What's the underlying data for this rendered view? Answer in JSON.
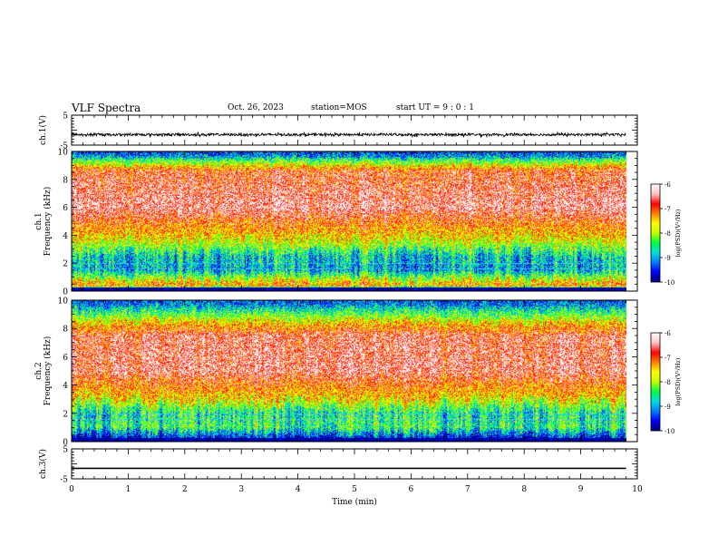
{
  "header": {
    "title": "VLF Spectra",
    "date": "Oct. 26, 2023",
    "station": "station=MOS",
    "start": "start UT =  9 : 0 : 1"
  },
  "colors": {
    "scale": [
      "#000080",
      "#0000ff",
      "#0080ff",
      "#00e0e0",
      "#00ff40",
      "#c0ff00",
      "#ffff00",
      "#ff8000",
      "#ff0000",
      "#ffc0c0",
      "#ffffff"
    ]
  },
  "chart_data": [
    {
      "type": "line",
      "id": "ch1-waveform",
      "ylabel": "ch.1(V)",
      "ylim": [
        -5,
        5
      ],
      "y_ticks": [
        "5",
        "-5"
      ],
      "xlim": [
        0,
        10
      ],
      "description_values": {
        "baseline_V": -1.5,
        "noise_amplitude_V": 0.4
      }
    },
    {
      "type": "heatmap",
      "id": "ch1-spectrogram",
      "ylabel": "ch.1\nFrequency (kHz)",
      "ylim": [
        0,
        10
      ],
      "y_ticks": [
        "0",
        "2",
        "4",
        "6",
        "8",
        "10"
      ],
      "xlim": [
        0,
        10
      ],
      "data_extent_min": 9.8,
      "colorbar": {
        "label": "log(PSD)(V²/Hz)",
        "range": [
          -10,
          -6
        ],
        "ticks": [
          "-6",
          "-7",
          "-8",
          "-9",
          "-10"
        ]
      },
      "frequency_profile_kHz": [
        {
          "f": 0.0,
          "log_psd": -10
        },
        {
          "f": 0.4,
          "log_psd": -7.2
        },
        {
          "f": 1.5,
          "log_psd": -9.0
        },
        {
          "f": 2.5,
          "log_psd": -8.8
        },
        {
          "f": 3.5,
          "log_psd": -7.8
        },
        {
          "f": 6.0,
          "log_psd": -6.4
        },
        {
          "f": 8.6,
          "log_psd": -6.8
        },
        {
          "f": 9.3,
          "log_psd": -8.2
        },
        {
          "f": 10.0,
          "log_psd": -9.6
        }
      ]
    },
    {
      "type": "heatmap",
      "id": "ch2-spectrogram",
      "ylabel": "ch.2\nFrequency (kHz)",
      "ylim": [
        0,
        10
      ],
      "y_ticks": [
        "0",
        "2",
        "4",
        "6",
        "8",
        "10"
      ],
      "xlim": [
        0,
        10
      ],
      "data_extent_min": 9.8,
      "colorbar": {
        "label": "log(PSD)(V²/Hz)",
        "range": [
          -10,
          -6
        ],
        "ticks": [
          "-6",
          "-7",
          "-8",
          "-9",
          "-10"
        ]
      },
      "frequency_profile_kHz": [
        {
          "f": 0.0,
          "log_psd": -10
        },
        {
          "f": 1.0,
          "log_psd": -8.4
        },
        {
          "f": 2.0,
          "log_psd": -8.6
        },
        {
          "f": 3.0,
          "log_psd": -7.6
        },
        {
          "f": 5.0,
          "log_psd": -6.5
        },
        {
          "f": 7.5,
          "log_psd": -6.6
        },
        {
          "f": 8.5,
          "log_psd": -7.6
        },
        {
          "f": 9.3,
          "log_psd": -8.6
        },
        {
          "f": 10.0,
          "log_psd": -9.4
        }
      ]
    },
    {
      "type": "line",
      "id": "ch3-waveform",
      "ylabel": "ch.3(V)",
      "ylim": [
        -5,
        5
      ],
      "y_ticks": [
        "5",
        "-5"
      ],
      "xlim": [
        0,
        10
      ],
      "description_values": {
        "baseline_V": -1.5,
        "noise_amplitude_V": 0.0
      }
    }
  ],
  "x_axis": {
    "label": "Time (min)",
    "ticks": [
      "0",
      "1",
      "2",
      "3",
      "4",
      "5",
      "6",
      "7",
      "8",
      "9",
      "10"
    ]
  }
}
